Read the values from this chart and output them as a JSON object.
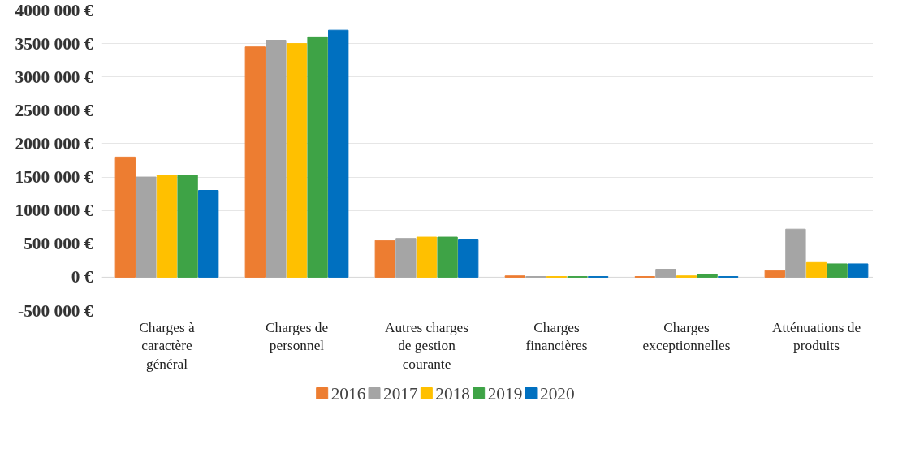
{
  "chart_data": {
    "type": "bar",
    "categories": [
      "Charges à caractère général",
      "Charges de personnel",
      "Autres charges de gestion courante",
      "Charges financières",
      "Charges exceptionnelles",
      "Atténuations de produits"
    ],
    "series": [
      {
        "name": "2016",
        "color": "#ed7d31",
        "values": [
          1800000,
          3450000,
          550000,
          20000,
          10000,
          100000
        ]
      },
      {
        "name": "2017",
        "color": "#a5a5a5",
        "values": [
          1500000,
          3550000,
          580000,
          10000,
          120000,
          720000
        ]
      },
      {
        "name": "2018",
        "color": "#ffc000",
        "values": [
          1530000,
          3500000,
          600000,
          10000,
          20000,
          220000
        ]
      },
      {
        "name": "2019",
        "color": "#3ea346",
        "values": [
          1530000,
          3600000,
          600000,
          10000,
          40000,
          200000
        ]
      },
      {
        "name": "2020",
        "color": "#0070c0",
        "values": [
          1300000,
          3700000,
          570000,
          10000,
          10000,
          200000
        ]
      }
    ],
    "ylim": [
      -500000,
      4000000
    ],
    "yticks": [
      {
        "value": -500000,
        "label": "-500 000 €"
      },
      {
        "value": 0,
        "label": "0 €"
      },
      {
        "value": 500000,
        "label": "500 000 €"
      },
      {
        "value": 1000000,
        "label": "1000 000 €"
      },
      {
        "value": 1500000,
        "label": "1500 000 €"
      },
      {
        "value": 2000000,
        "label": "2000 000 €"
      },
      {
        "value": 2500000,
        "label": "2500 000 €"
      },
      {
        "value": 3000000,
        "label": "3000 000 €"
      },
      {
        "value": 3500000,
        "label": "3500 000 €"
      },
      {
        "value": 4000000,
        "label": "4000 000 €"
      }
    ],
    "grid": "y",
    "legend": "bottom"
  }
}
